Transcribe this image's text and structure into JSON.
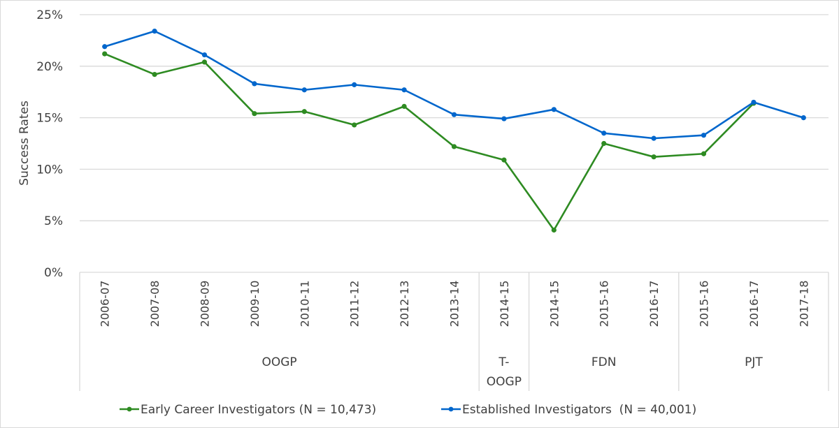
{
  "chart_data": {
    "type": "line",
    "title": "",
    "xlabel": "",
    "ylabel": "Success Rates",
    "ylim": [
      0,
      25
    ],
    "yticks": [
      "0%",
      "5%",
      "10%",
      "15%",
      "20%",
      "25%"
    ],
    "ytick_values": [
      0,
      5,
      10,
      15,
      20,
      25
    ],
    "grid": true,
    "legend_position": "bottom",
    "categories": [
      "2006-07",
      "2007-08",
      "2008-09",
      "2009-10",
      "2010-11",
      "2011-12",
      "2012-13",
      "2013-14",
      "2014-15",
      "2014-15",
      "2015-16",
      "2016-17",
      "2015-16",
      "2016-17",
      "2017-18"
    ],
    "groups": [
      {
        "label": "OOGP",
        "count": 8
      },
      {
        "label": "T-OOGP",
        "count": 1
      },
      {
        "label": "FDN",
        "count": 3
      },
      {
        "label": "PJT",
        "count": 3
      }
    ],
    "series": [
      {
        "name": "Early Career Investigators (N = 10,473)",
        "color": "#2e8b22",
        "values": [
          21.2,
          19.2,
          20.4,
          15.4,
          15.6,
          14.3,
          16.1,
          12.2,
          10.9,
          4.1,
          12.5,
          11.2,
          11.5,
          16.4,
          null
        ]
      },
      {
        "name": "Established Investigators  (N = 40,001)",
        "color": "#0066cc",
        "values": [
          21.9,
          23.4,
          21.1,
          18.3,
          17.7,
          18.2,
          17.7,
          15.3,
          14.9,
          15.8,
          13.5,
          13.0,
          13.3,
          16.5,
          15.0
        ]
      }
    ]
  }
}
